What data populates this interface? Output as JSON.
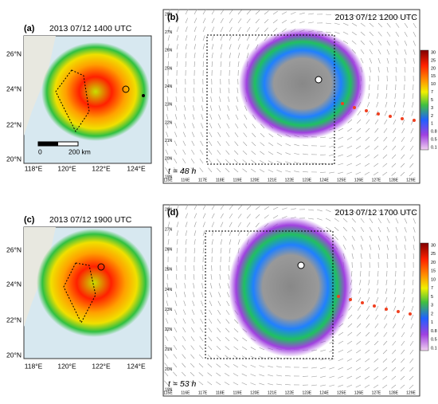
{
  "panels": [
    {
      "label": "(a)",
      "time": "2013 07/12 1400 UTC",
      "lat_labels": [
        "26°N",
        "24°N",
        "22°N",
        "20°N"
      ],
      "lon_labels": [
        "118°E",
        "120°E",
        "122°E",
        "124°E"
      ],
      "scale": [
        "0",
        "200 km"
      ]
    },
    {
      "label": "(b)",
      "time": "2013 07/12 1200 UTC",
      "lat_labels": [
        "28N",
        "27N",
        "26N",
        "25N",
        "24N",
        "23N",
        "22N",
        "21N",
        "20N",
        "19N"
      ],
      "lon_labels": [
        "115E",
        "116E",
        "117E",
        "118E",
        "119E",
        "120E",
        "121E",
        "122E",
        "123E",
        "124E",
        "125E",
        "126E",
        "127E",
        "128E",
        "129E"
      ],
      "lead": "t = 48 h",
      "colorbar": [
        "30",
        "25",
        "20",
        "15",
        "10",
        "7",
        "5",
        "3",
        "2",
        "1",
        "0.8",
        "0.5",
        "0.1"
      ]
    },
    {
      "label": "(c)",
      "time": "2013 07/12 1900 UTC",
      "lat_labels": [
        "26°N",
        "24°N",
        "22°N",
        "20°N"
      ],
      "lon_labels": [
        "118°E",
        "120°E",
        "122°E",
        "124°E"
      ]
    },
    {
      "label": "(d)",
      "time": "2013 07/12 1700 UTC",
      "lat_labels": [
        "28N",
        "27N",
        "26N",
        "25N",
        "24N",
        "23N",
        "22N",
        "21N",
        "20N",
        "19N"
      ],
      "lon_labels": [
        "115E",
        "116E",
        "117E",
        "118E",
        "119E",
        "120E",
        "121E",
        "122E",
        "123E",
        "124E",
        "125E",
        "126E",
        "127E",
        "128E",
        "129E"
      ],
      "lead": "t = 53 h",
      "colorbar": [
        "30",
        "25",
        "20",
        "15",
        "10",
        "7",
        "5",
        "3",
        "2",
        "1",
        "0.8",
        "0.5",
        "0.1"
      ]
    }
  ]
}
